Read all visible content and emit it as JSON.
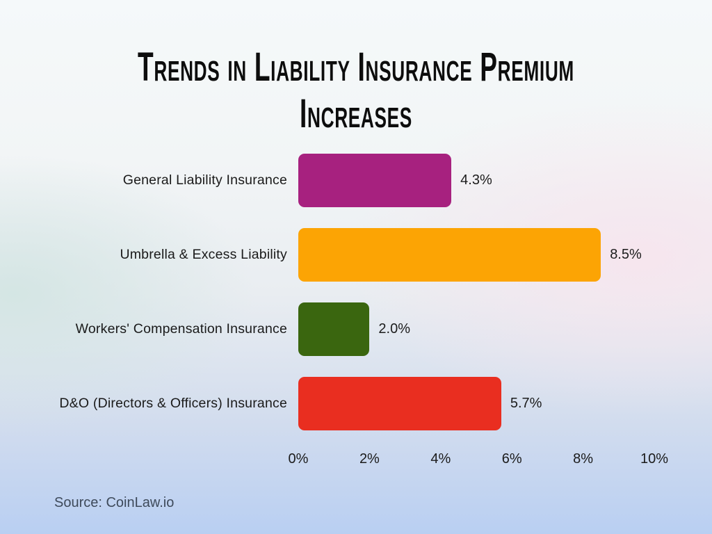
{
  "title": {
    "line1": "Trends in Liability Insurance Premium",
    "line2": "Increases"
  },
  "source": "Source: CoinLaw.io",
  "chart_data": {
    "type": "bar",
    "orientation": "horizontal",
    "title": "Trends in Liability Insurance Premium Increases",
    "categories": [
      "General Liability Insurance",
      "Umbrella & Excess Liability",
      "Workers' Compensation Insurance",
      "D&O (Directors & Officers) Insurance"
    ],
    "values": [
      4.3,
      8.5,
      2.0,
      5.7
    ],
    "value_labels": [
      "4.3%",
      "8.5%",
      "2.0%",
      "5.7%"
    ],
    "colors": [
      "#a7217f",
      "#fca404",
      "#3a660f",
      "#e92e20"
    ],
    "xlabel": "",
    "ylabel": "",
    "xlim": [
      0,
      10
    ],
    "x_ticks": [
      "0%",
      "2%",
      "4%",
      "6%",
      "8%",
      "10%"
    ],
    "grid": false,
    "legend": false
  }
}
